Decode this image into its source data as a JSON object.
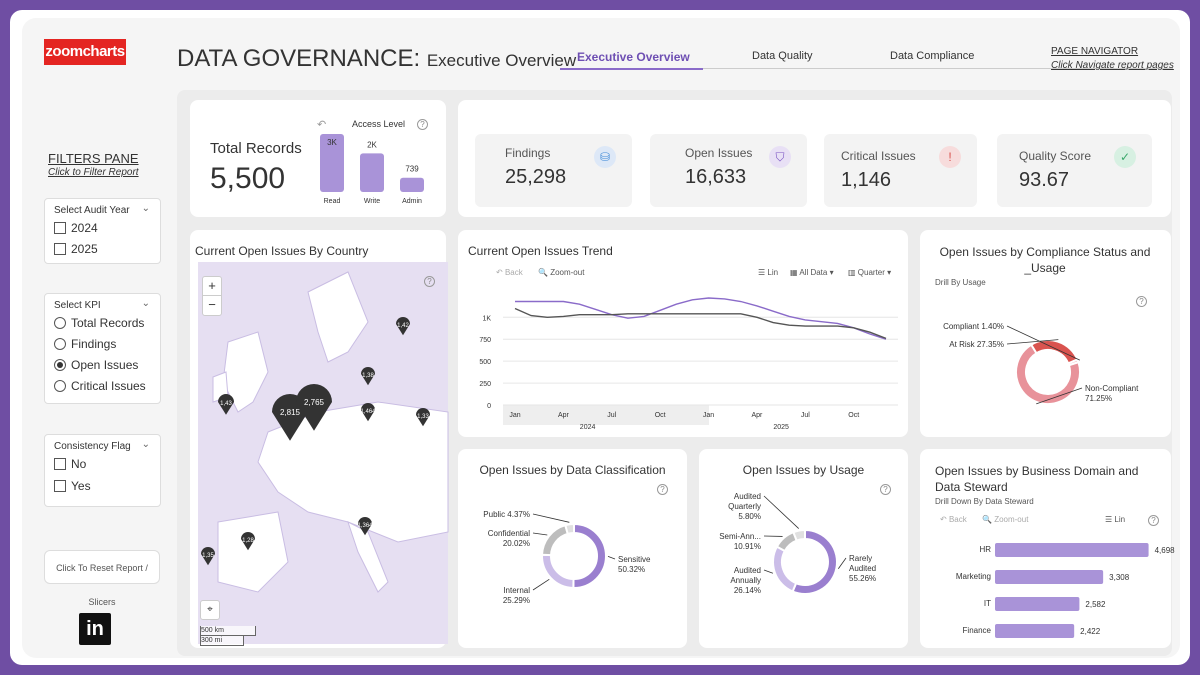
{
  "brand": {
    "logo_text": "zoomcharts",
    "linkedin_text": "in"
  },
  "header": {
    "title": "DATA GOVERNANCE:",
    "subtitle": "Executive Overview",
    "tabs": [
      "Executive Overview",
      "Data Quality",
      "Data Compliance"
    ],
    "active_tab": "Executive Overview",
    "page_nav_label": "PAGE NAVIGATOR",
    "page_nav_sub": "Click Navigate report pages",
    "accent": "#6e4fb3"
  },
  "filters": {
    "title": "FILTERS PANE",
    "subtitle": "Click to Filter Report",
    "audit_year": {
      "label": "Select Audit Year",
      "options": [
        "2024",
        "2025"
      ]
    },
    "kpi": {
      "label": "Select KPI",
      "options": [
        "Total Records",
        "Findings",
        "Open Issues",
        "Critical Issues"
      ],
      "selected": "Open Issues"
    },
    "consistency": {
      "label": "Consistency Flag",
      "options": [
        "No",
        "Yes"
      ]
    },
    "reset_label": "Click To Reset Report / Slicers"
  },
  "total_records": {
    "label": "Total Records",
    "value": "5,500",
    "access_level_label": "Access Level",
    "back_icon": "back-arrow-icon",
    "bars": [
      {
        "label": "Read",
        "value": 3000,
        "display": "3K"
      },
      {
        "label": "Write",
        "value": 2000,
        "display": "2K"
      },
      {
        "label": "Admin",
        "value": 739,
        "display": "739"
      }
    ]
  },
  "kpis": [
    {
      "label": "Findings",
      "value": "25,298",
      "icon": "database-icon",
      "icon_color": "#4a90d9",
      "icon_bg": "#dde8f7"
    },
    {
      "label": "Open Issues",
      "value": "16,633",
      "icon": "shield-icon",
      "icon_color": "#7b55c4",
      "icon_bg": "#e8e0f5"
    },
    {
      "label": "Critical Issues",
      "value": "1,146",
      "icon": "alert-icon",
      "icon_color": "#d9534f",
      "icon_bg": "#f7dcdc"
    },
    {
      "label": "Quality Score",
      "value": "93.67",
      "icon": "check-icon",
      "icon_color": "#3aa86b",
      "icon_bg": "#d7f0e2"
    }
  ],
  "map": {
    "title": "Current Open Issues By Country",
    "zoom_in": "+",
    "zoom_out": "−",
    "scale_km": "500 km",
    "scale_mi": "300 mi",
    "markers": [
      "2,815",
      "2,765",
      "1,43",
      "1,42",
      "1,38",
      "1,464",
      "1,33",
      "1,364",
      "1,28",
      "1,35"
    ]
  },
  "trend": {
    "title": "Current Open Issues Trend",
    "toolbar": {
      "back": "Back",
      "zoom_out": "Zoom-out",
      "scale": "Lin",
      "range": "All Data",
      "period": "Quarter"
    },
    "chart_data": {
      "type": "line",
      "x": [
        "2024-01",
        "2024-02",
        "2024-03",
        "2024-04",
        "2024-05",
        "2024-06",
        "2024-07",
        "2024-08",
        "2024-09",
        "2024-10",
        "2024-11",
        "2024-12",
        "2025-01",
        "2025-02",
        "2025-03",
        "2025-04",
        "2025-05",
        "2025-06",
        "2025-07",
        "2025-08",
        "2025-09",
        "2025-10",
        "2025-11",
        "2025-12"
      ],
      "series": [
        {
          "color": "#8a6bc9",
          "values": [
            1180,
            1180,
            1180,
            1180,
            1150,
            1090,
            1030,
            990,
            1010,
            1080,
            1150,
            1200,
            1220,
            1210,
            1180,
            1130,
            1070,
            1010,
            970,
            950,
            930,
            880,
            810,
            750
          ]
        },
        {
          "color": "#555555",
          "values": [
            1100,
            1020,
            1000,
            1010,
            1030,
            1030,
            1030,
            1040,
            1040,
            1040,
            1040,
            1040,
            1040,
            1040,
            1040,
            1000,
            940,
            910,
            900,
            900,
            900,
            880,
            830,
            760
          ]
        }
      ],
      "yticks": [
        0,
        250,
        500,
        750,
        1000
      ],
      "ytick_labels": [
        "0",
        "250",
        "500",
        "750",
        "1K"
      ],
      "xticks": [
        "Jan",
        "Apr",
        "Jul",
        "Oct",
        "Jan",
        "Apr",
        "Jul",
        "Oct"
      ],
      "year_labels": [
        "2024",
        "2025"
      ],
      "ylim": [
        0,
        1300
      ]
    }
  },
  "compliance": {
    "title": "Open Issues by Compliance Status and _Usage",
    "subtitle": "Drill By Usage",
    "chart_data": {
      "type": "pie",
      "slices": [
        {
          "label": "Non-Compliant",
          "value": 71.25,
          "display": "71.25%",
          "color": "#e8929a"
        },
        {
          "label": "At Risk",
          "value": 27.35,
          "display": "27.35%",
          "color": "#d9534f"
        },
        {
          "label": "Compliant",
          "value": 1.4,
          "display": "1.40%",
          "color": "#f3c1c6"
        }
      ]
    }
  },
  "classification": {
    "title": "Open Issues by Data Classification",
    "chart_data": {
      "type": "pie",
      "slices": [
        {
          "label": "Sensitive",
          "value": 50.32,
          "display": "50.32%",
          "color": "#9a7fcf"
        },
        {
          "label": "Internal",
          "value": 25.29,
          "display": "25.29%",
          "color": "#cbbde8"
        },
        {
          "label": "Confidential",
          "value": 20.02,
          "display": "20.02%",
          "color": "#bdbdbd"
        },
        {
          "label": "Public",
          "value": 4.37,
          "display": "4.37%",
          "color": "#e0e0e0"
        }
      ]
    }
  },
  "usage": {
    "title": "Open Issues by Usage",
    "chart_data": {
      "type": "pie",
      "slices": [
        {
          "label": "Rarely Audited",
          "value": 55.26,
          "display": "55.26%",
          "color": "#9a7fcf"
        },
        {
          "label": "Audited Annually",
          "value": 26.14,
          "display": "26.14%",
          "color": "#cbbde8"
        },
        {
          "label": "Semi-Ann...",
          "value": 10.91,
          "display": "10.91%",
          "color": "#bdbdbd"
        },
        {
          "label": "Audited Quarterly",
          "value": 5.8,
          "display": "5.80%",
          "color": "#e0e0e0"
        }
      ]
    }
  },
  "domain": {
    "title": "Open Issues by Business Domain and Data Steward",
    "subtitle": "Drill Down By Data Steward",
    "toolbar": {
      "back": "Back",
      "zoom_out": "Zoom-out",
      "scale": "Lin"
    },
    "chart_data": {
      "type": "bar",
      "categories": [
        "HR",
        "Marketing",
        "IT",
        "Finance"
      ],
      "values": [
        4698,
        3308,
        2582,
        2422
      ],
      "value_labels": [
        "4,698",
        "3,308",
        "2,582",
        "2,422"
      ],
      "color": "#a993d8"
    }
  }
}
